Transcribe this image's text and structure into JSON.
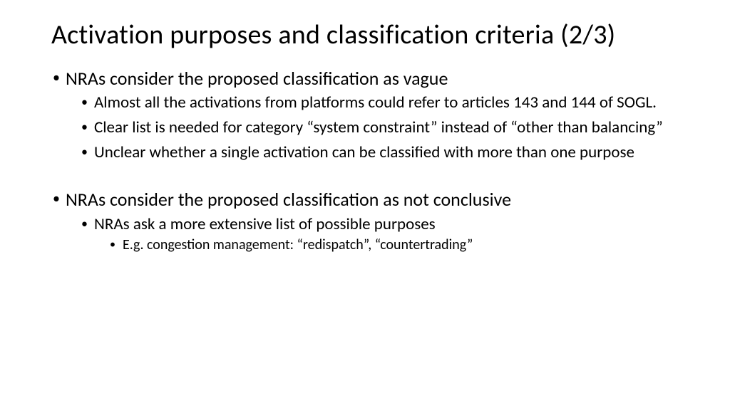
{
  "slide": {
    "title": "Activation purposes and classification criteria (2/3)",
    "title_fontsize": 38,
    "background_color": "#ffffff",
    "text_color": "#000000",
    "font_family": "Calibri",
    "bullets": [
      {
        "text": "NRAs consider the proposed classification as vague",
        "fontsize": 26,
        "children": [
          {
            "text": "Almost all the activations from platforms could refer to articles 143 and 144 of SOGL.",
            "fontsize": 23
          },
          {
            "text": "Clear list is needed for category “system constraint” instead of “other than balancing”",
            "fontsize": 23
          },
          {
            "text": "Unclear whether a single activation can be classified with more than one purpose",
            "fontsize": 23
          }
        ]
      },
      {
        "text": "NRAs consider the proposed classification as not conclusive",
        "fontsize": 26,
        "children": [
          {
            "text": "NRAs ask a more extensive list of possible purposes",
            "fontsize": 23,
            "children": [
              {
                "text": "E.g. congestion management: “redispatch”, “countertrading”",
                "fontsize": 20
              }
            ]
          }
        ]
      }
    ]
  }
}
